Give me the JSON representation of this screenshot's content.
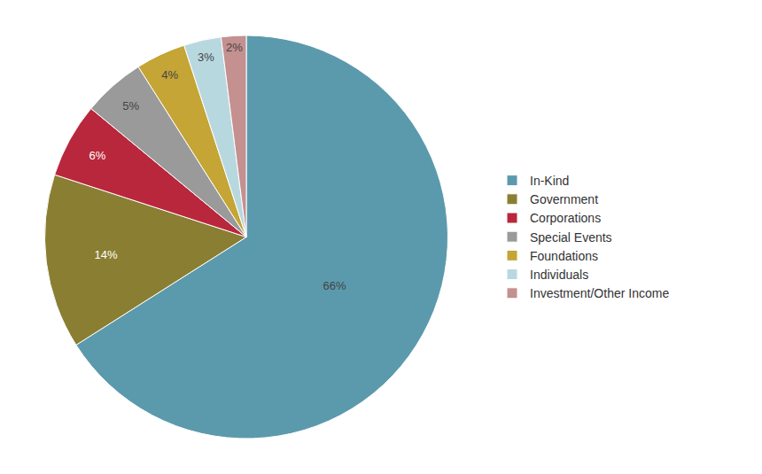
{
  "chart_data": {
    "type": "pie",
    "categories": [
      "In-Kind",
      "Government",
      "Corporations",
      "Special Events",
      "Foundations",
      "Individuals",
      "Investment/Other Income"
    ],
    "values": [
      66,
      14,
      6,
      5,
      4,
      3,
      2
    ],
    "value_labels": [
      "66%",
      "14%",
      "6%",
      "5%",
      "4%",
      "3%",
      "2%"
    ],
    "colors": [
      "#5b9aac",
      "#8a7e32",
      "#b8273c",
      "#9a9a9a",
      "#c4a535",
      "#b8d8e0",
      "#c49090"
    ],
    "data_labels": true,
    "legend": "right"
  }
}
